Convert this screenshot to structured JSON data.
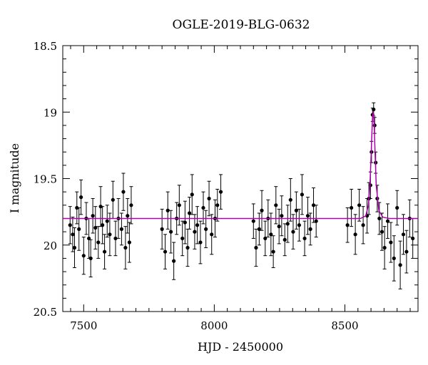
{
  "chart_data": {
    "type": "scatter",
    "title": "OGLE-2019-BLG-0632",
    "xlabel": "HJD - 2450000",
    "ylabel": "I magnitude",
    "xlim": [
      7420,
      8780
    ],
    "ylim": [
      20.5,
      18.5
    ],
    "y_inverted": true,
    "x_ticks": [
      7500,
      8000,
      8500
    ],
    "x_tick_labels": [
      "7500",
      "8000",
      "8500"
    ],
    "y_ticks": [
      18.5,
      19,
      19.5,
      20,
      20.5
    ],
    "y_tick_labels": [
      "18.5",
      "19",
      "19.5",
      "20",
      "20.5"
    ],
    "grid": false,
    "colors": {
      "points": "#000000",
      "model": "#b000b0"
    },
    "series": [
      {
        "type": "scatter_errorbars",
        "x": [
          7448,
          7458,
          7465,
          7474,
          7482,
          7490,
          7500,
          7510,
          7520,
          7527,
          7535,
          7545,
          7556,
          7565,
          7572,
          7580,
          7590,
          7600,
          7612,
          7622,
          7633,
          7645,
          7652,
          7660,
          7668,
          7675,
          7682,
          7800,
          7812,
          7822,
          7834,
          7845,
          7856,
          7866,
          7878,
          7888,
          7898,
          7905,
          7915,
          7925,
          7935,
          7947,
          7958,
          7968,
          7980,
          7990,
          8003,
          8012,
          8025,
          8150,
          8160,
          8172,
          8182,
          8195,
          8206,
          8217,
          8226,
          8236,
          8248,
          8258,
          8270,
          8281,
          8292,
          8302,
          8314,
          8325,
          8336,
          8346,
          8358,
          8368,
          8380,
          8390,
          8510,
          8525,
          8540,
          8555,
          8570,
          8585,
          8592,
          8598,
          8602,
          8606,
          8610,
          8614,
          8618,
          8624,
          8632,
          8642,
          8652,
          8664,
          8676,
          8688,
          8700,
          8712,
          8724,
          8736,
          8748,
          8760
        ],
        "y": [
          19.85,
          19.92,
          20.02,
          19.72,
          19.88,
          19.64,
          20.08,
          19.8,
          19.95,
          20.1,
          19.78,
          19.87,
          19.98,
          19.71,
          19.85,
          20.05,
          19.82,
          19.92,
          19.66,
          19.95,
          19.8,
          19.88,
          19.6,
          20.02,
          19.78,
          19.98,
          19.7,
          19.88,
          20.05,
          19.74,
          19.9,
          20.12,
          19.8,
          19.7,
          19.95,
          19.83,
          20.02,
          19.76,
          19.62,
          19.9,
          19.85,
          19.98,
          19.72,
          19.88,
          19.65,
          19.92,
          19.8,
          19.7,
          19.6,
          19.82,
          20.02,
          19.88,
          19.74,
          19.95,
          19.8,
          19.92,
          20.05,
          19.7,
          19.86,
          19.78,
          19.96,
          19.84,
          19.66,
          19.9,
          19.74,
          19.85,
          19.62,
          19.95,
          19.78,
          19.88,
          19.7,
          19.82,
          19.85,
          19.72,
          19.92,
          19.7,
          19.85,
          19.78,
          19.65,
          19.55,
          19.3,
          19.02,
          18.98,
          19.1,
          19.38,
          19.65,
          19.8,
          19.9,
          20.02,
          19.82,
          19.98,
          20.1,
          19.72,
          20.15,
          19.92,
          20.05,
          19.8,
          19.95
        ],
        "yerr": [
          0.14,
          0.13,
          0.15,
          0.12,
          0.16,
          0.13,
          0.14,
          0.12,
          0.15,
          0.14,
          0.13,
          0.16,
          0.12,
          0.15,
          0.14,
          0.13,
          0.12,
          0.16,
          0.14,
          0.13,
          0.15,
          0.12,
          0.14,
          0.16,
          0.13,
          0.15,
          0.14,
          0.15,
          0.13,
          0.14,
          0.16,
          0.14,
          0.12,
          0.15,
          0.13,
          0.16,
          0.14,
          0.12,
          0.15,
          0.13,
          0.14,
          0.16,
          0.12,
          0.14,
          0.13,
          0.15,
          0.14,
          0.12,
          0.13,
          0.13,
          0.14,
          0.12,
          0.15,
          0.13,
          0.14,
          0.16,
          0.12,
          0.14,
          0.13,
          0.15,
          0.12,
          0.14,
          0.16,
          0.13,
          0.14,
          0.12,
          0.15,
          0.13,
          0.14,
          0.12,
          0.13,
          0.12,
          0.13,
          0.14,
          0.15,
          0.12,
          0.14,
          0.13,
          0.12,
          0.1,
          0.08,
          0.05,
          0.05,
          0.06,
          0.08,
          0.1,
          0.12,
          0.14,
          0.16,
          0.13,
          0.15,
          0.17,
          0.13,
          0.18,
          0.15,
          0.16,
          0.14,
          0.15
        ]
      },
      {
        "type": "line",
        "x": [
          7420,
          8560,
          8580,
          8590,
          8596,
          8600,
          8603,
          8606,
          8609,
          8612,
          8616,
          8620,
          8630,
          8645,
          8670,
          8780
        ],
        "y": [
          19.8,
          19.8,
          19.78,
          19.7,
          19.55,
          19.35,
          19.18,
          19.03,
          19.0,
          19.1,
          19.32,
          19.55,
          19.74,
          19.79,
          19.8,
          19.8
        ]
      }
    ]
  }
}
